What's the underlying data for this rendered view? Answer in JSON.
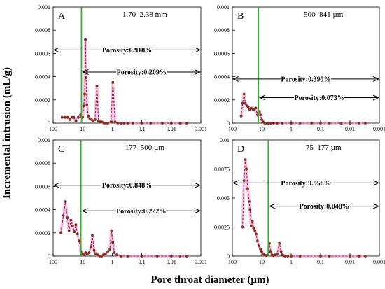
{
  "figure": {
    "ylabel": "Incremental intrusion (mL/g)",
    "xlabel": "Pore throat diameter (µm)"
  },
  "chart_data": [
    {
      "panel": "A",
      "type": "line",
      "title": "1.70–2.38 mm",
      "x_scale": "log",
      "x_reversed": true,
      "xlim": [
        100,
        0.001
      ],
      "ylim": [
        0,
        0.001
      ],
      "yticks": [
        "0",
        "0.0002",
        "0.0004",
        "0.0006",
        "0.0008",
        "0.001"
      ],
      "xticks": [
        "100",
        "10",
        "1",
        "0.1",
        "0.01",
        "0.001"
      ],
      "green_line_x": 11,
      "annotations": [
        {
          "text": "Porosity:0.918%",
          "y": 0.00063,
          "x_from": 100,
          "x_to": 0.001
        },
        {
          "text": "Porosity:0.209%",
          "y": 0.00044,
          "x_from": 11,
          "x_to": 0.001
        }
      ],
      "series": [
        {
          "x": [
            50,
            40,
            32,
            27,
            23,
            20,
            17,
            14,
            12,
            11,
            10,
            9.2,
            8.6,
            8.1,
            7.7,
            7.2,
            6.5,
            5.7,
            5,
            4.4,
            3.8,
            3.3,
            2.9,
            2.5,
            2.2,
            1.9,
            1.6,
            1.4,
            1.1,
            0.95,
            0.8,
            0.65,
            0.5,
            0.4,
            0.3,
            0.2,
            0.1,
            0.05,
            0.02,
            0.01,
            0.005,
            0.003
          ],
          "y": [
            5e-05,
            5e-05,
            5e-05,
            3e-05,
            5e-05,
            5e-05,
            2e-05,
            5e-05,
            7e-05,
            5e-05,
            5e-05,
            0.00015,
            0.00025,
            0.00072,
            0.00039,
            0.00016,
            6e-05,
            4e-05,
            3e-05,
            2e-05,
            3e-05,
            0.00032,
            2e-05,
            1e-05,
            1e-05,
            0,
            0,
            0,
            1e-05,
            0.00035,
            1e-05,
            0,
            0,
            0,
            0,
            0,
            0,
            0,
            0,
            0,
            0,
            0
          ]
        }
      ]
    },
    {
      "panel": "B",
      "type": "line",
      "title": "500–841 µm",
      "x_scale": "log",
      "x_reversed": true,
      "xlim": [
        100,
        0.001
      ],
      "ylim": [
        0,
        0.001
      ],
      "yticks": [
        "0",
        "0.0002",
        "0.0004",
        "0.0006",
        "0.0008",
        "0.001"
      ],
      "xticks": [
        "100",
        "10",
        "1",
        "0.1",
        "0.01",
        "0.001"
      ],
      "green_line_x": 13,
      "annotations": [
        {
          "text": "Porosity:0.395%",
          "y": 0.00038,
          "x_from": 100,
          "x_to": 0.001
        },
        {
          "text": "Porosity:0.073%",
          "y": 0.00022,
          "x_from": 13,
          "x_to": 0.001
        }
      ],
      "series": [
        {
          "x": [
            50,
            45,
            40,
            36,
            32,
            29,
            26,
            23,
            20,
            18,
            16,
            14,
            13,
            12,
            11,
            10,
            9,
            8,
            7,
            6,
            5,
            4,
            3,
            2,
            1,
            0.5,
            0.2,
            0.1,
            0.05,
            0.02,
            0.01,
            0.005,
            0.003
          ],
          "y": [
            6e-05,
            0.00017,
            0.00025,
            0.00017,
            0.00015,
            0.00014,
            0.00012,
            0.00013,
            0.00012,
            0.00012,
            0.00013,
            7e-05,
            9e-05,
            0.0001,
            7e-05,
            3e-05,
            1e-05,
            0,
            0,
            0,
            0,
            0,
            0,
            0,
            0,
            0,
            0,
            0,
            0,
            0,
            0,
            0,
            0
          ]
        }
      ]
    },
    {
      "panel": "C",
      "type": "line",
      "title": "177–500 µm",
      "x_scale": "log",
      "x_reversed": true,
      "xlim": [
        100,
        0.001
      ],
      "ylim": [
        0,
        0.001
      ],
      "yticks": [
        "0",
        "0.0002",
        "0.0004",
        "0.0006",
        "0.0008",
        "0.001"
      ],
      "xticks": [
        "100",
        "10",
        "1",
        "0.1",
        "0.01",
        "0.001"
      ],
      "green_line_x": 11.5,
      "annotations": [
        {
          "text": "Porosity:0.848%",
          "y": 0.00061,
          "x_from": 100,
          "x_to": 0.001
        },
        {
          "text": "Porosity:0.222%",
          "y": 0.00039,
          "x_from": 11.5,
          "x_to": 0.001
        }
      ],
      "series": [
        {
          "x": [
            55,
            45,
            38,
            33,
            29,
            25,
            22,
            19,
            17,
            15,
            13,
            11.5,
            10,
            9,
            8,
            7,
            6,
            5.3,
            4.7,
            4.1,
            3.6,
            3.1,
            2.7,
            2.3,
            2,
            1.7,
            1.4,
            1.2,
            1.05,
            0.95,
            0.85,
            0.7,
            0.5,
            0.3,
            0.1,
            0.03,
            0.01,
            0.005,
            0.003
          ],
          "y": [
            0.0002,
            0.00035,
            0.00047,
            0.00033,
            0.00022,
            0.00031,
            0.00026,
            0.00021,
            0.00027,
            0.00019,
            0.00013,
            4e-05,
            2e-05,
            1e-05,
            3e-05,
            2e-05,
            3e-05,
            8e-05,
            0.00018,
            5e-05,
            2e-05,
            1e-05,
            0,
            0,
            1e-05,
            2e-05,
            4e-05,
            6e-05,
            0.00022,
            0.00012,
            3e-05,
            1e-05,
            0,
            0,
            0,
            0,
            0,
            0,
            0
          ]
        }
      ]
    },
    {
      "panel": "D",
      "type": "line",
      "title": "75–177 µm",
      "x_scale": "log",
      "x_reversed": true,
      "xlim": [
        100,
        0.001
      ],
      "ylim": [
        0,
        0.01
      ],
      "yticks": [
        "0",
        "0.0025",
        "0.005",
        "0.0075",
        "0.01"
      ],
      "xticks": [
        "100",
        "10",
        "1",
        "0.1",
        "0.01",
        "0.001"
      ],
      "green_line_x": 6,
      "annotations": [
        {
          "text": "Porosity:9.958%",
          "y": 0.0063,
          "x_from": 100,
          "x_to": 0.001
        },
        {
          "text": "Porosity:0.048%",
          "y": 0.0043,
          "x_from": 6,
          "x_to": 0.001
        }
      ],
      "series": [
        {
          "x": [
            45,
            40,
            36,
            33,
            30,
            27,
            25,
            23,
            21,
            19,
            17,
            15.5,
            14,
            12.5,
            11,
            10,
            9,
            8,
            7,
            6.2,
            5.5,
            5,
            4.5,
            4,
            3.5,
            3,
            2.5,
            2.2,
            2,
            1.8,
            1.6,
            1.3,
            1,
            0.5,
            0.1,
            0.05,
            0.01,
            0.005,
            0.003
          ],
          "y": [
            0.0025,
            0.0065,
            0.0083,
            0.0075,
            0.0058,
            0.0047,
            0.004,
            0.0026,
            0.003,
            0.0024,
            0.0022,
            0.0019,
            0.0013,
            0.0009,
            0.0006,
            0.0004,
            0.0002,
            0.0001,
            5e-05,
            0.0001,
            0.0011,
            0.0004,
            0.0001,
            5e-05,
            0.0001,
            0.0002,
            0.0011,
            0.0004,
            0.0001,
            5e-05,
            0,
            0,
            0,
            0,
            0,
            0,
            0,
            0,
            0
          ]
        }
      ]
    }
  ]
}
